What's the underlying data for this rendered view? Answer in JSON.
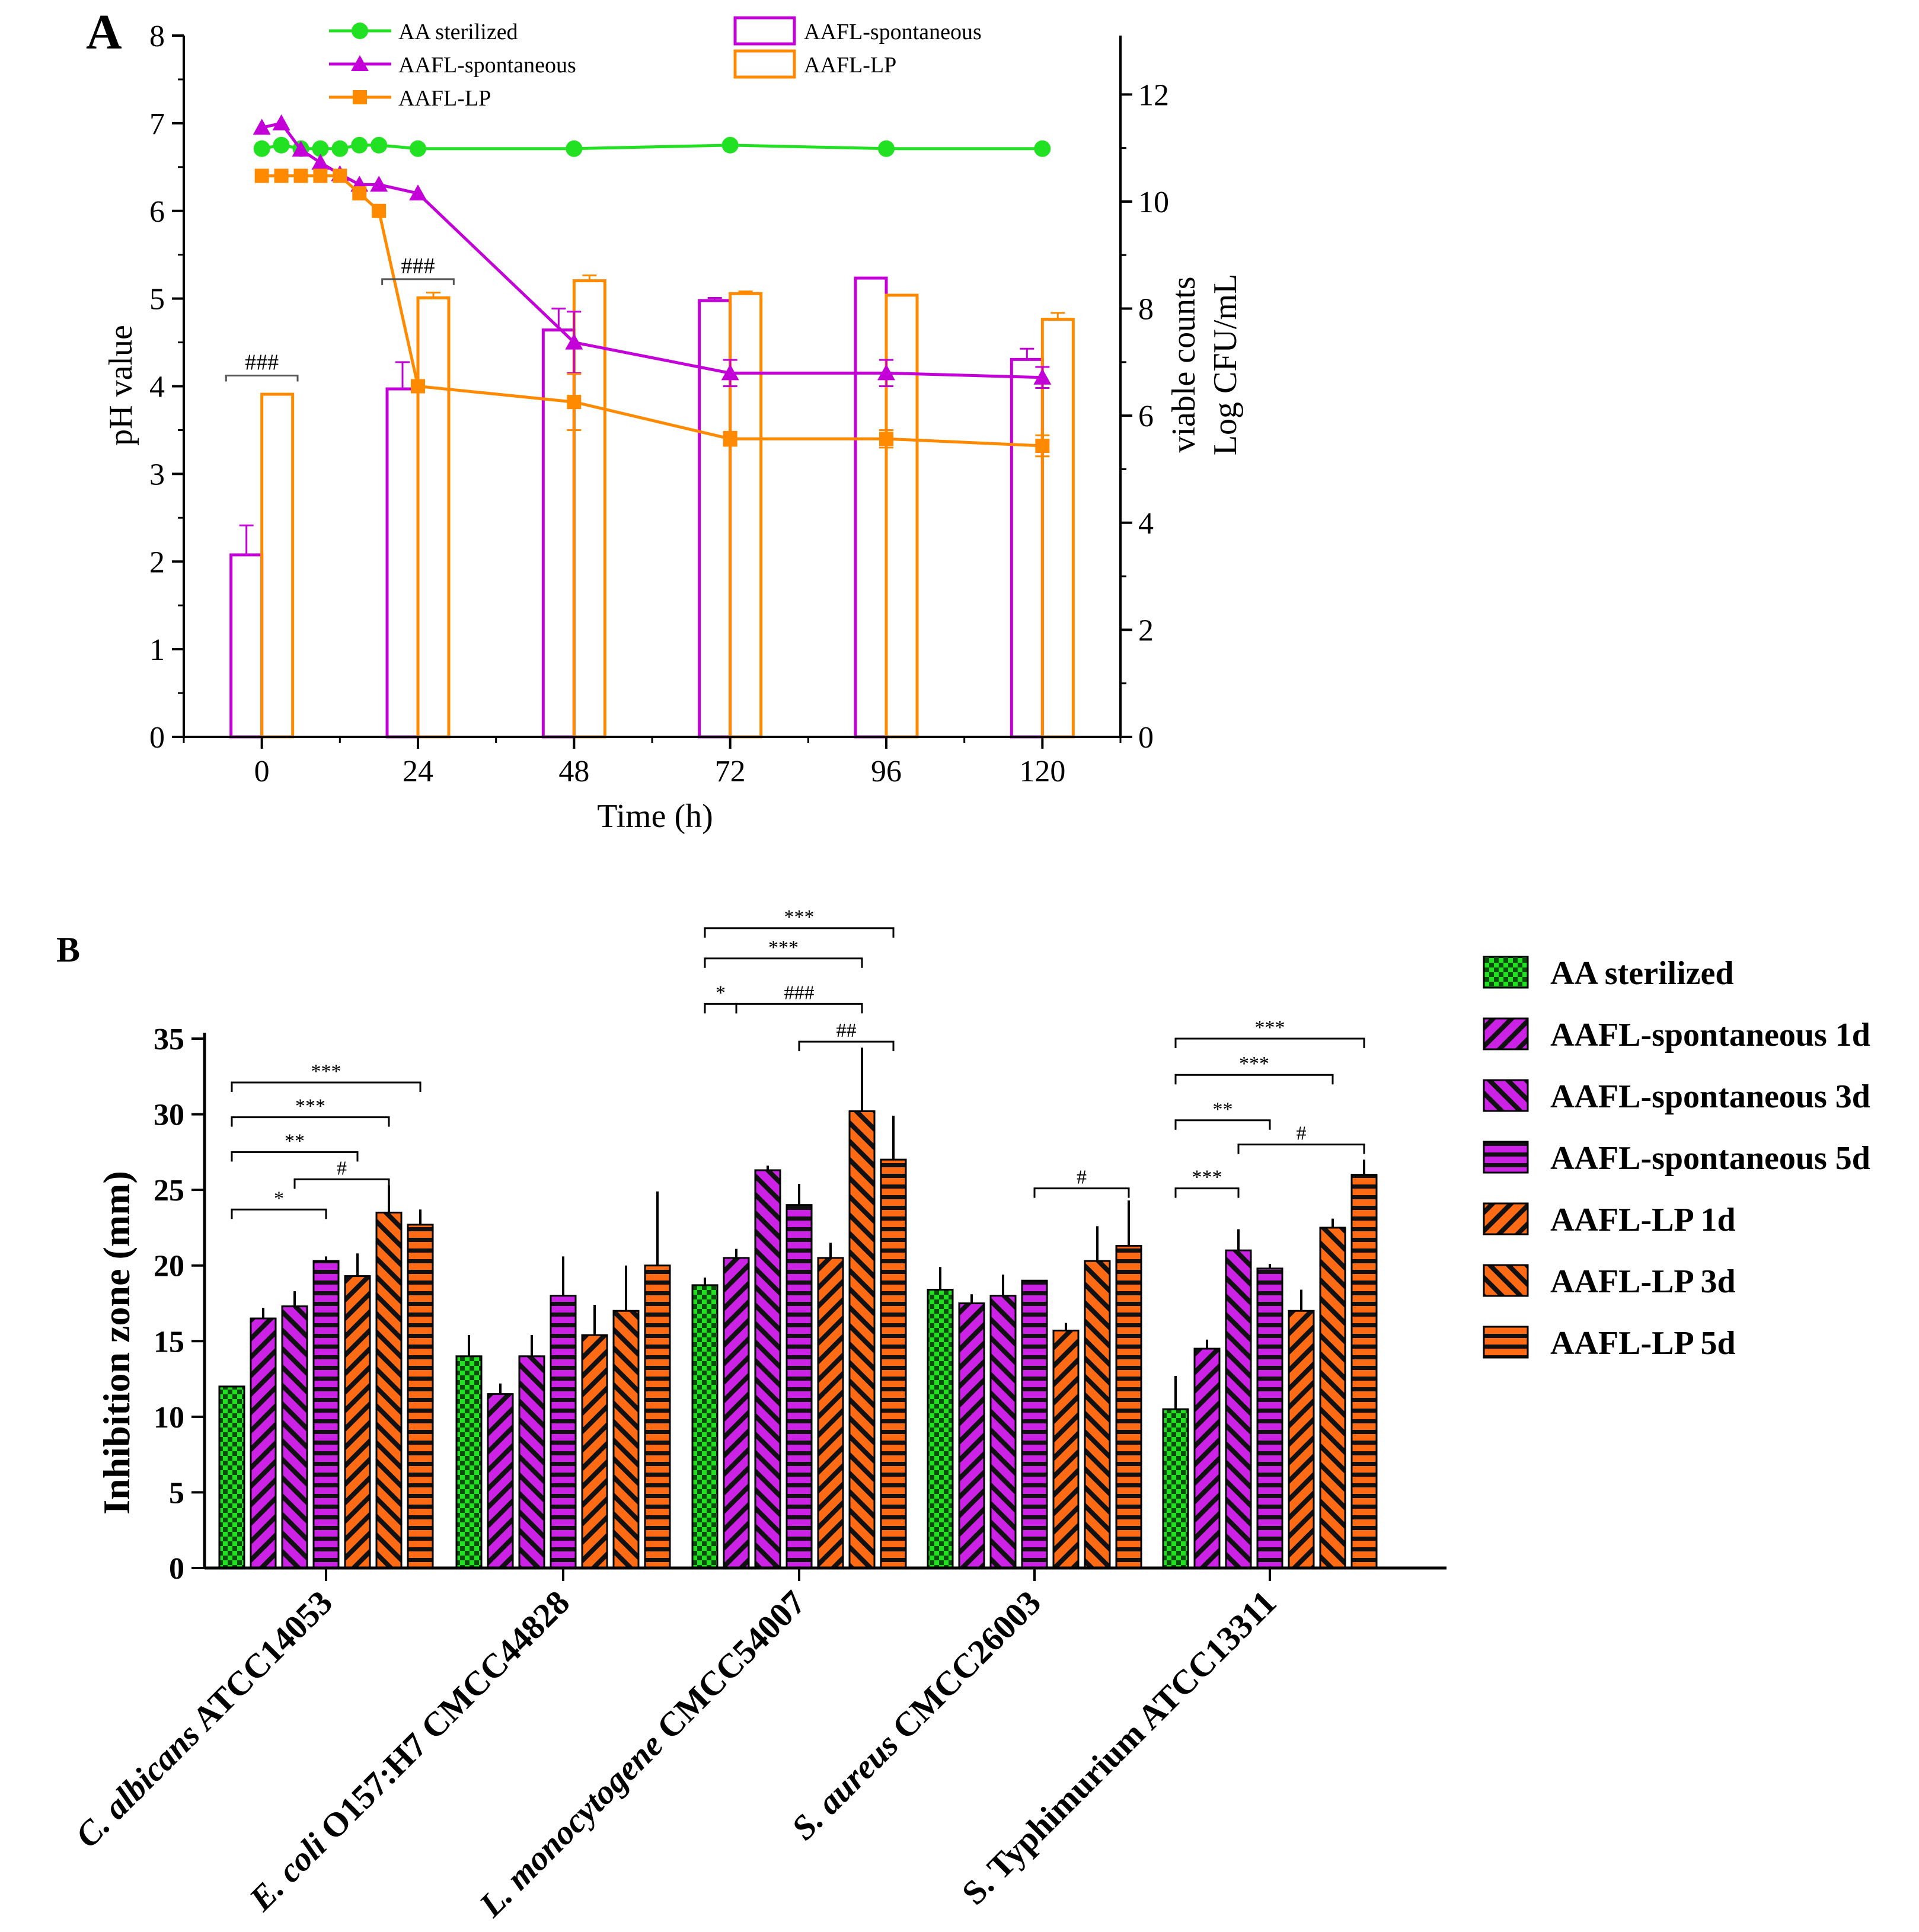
{
  "colors": {
    "green": "#22e022",
    "purple": "#c300d8",
    "bar_purple": "#cc22e6",
    "orange": "#ff8a00",
    "bar_orange": "#ff6a14",
    "axis": "#000000"
  },
  "chart_data": [
    {
      "panel_label": "A",
      "type": "line+bar",
      "xlabel": "Time (h)",
      "ylabel_left": "pH value",
      "ylabel_right_line1": "viable counts",
      "ylabel_right_line2": "Log CFU/mL",
      "x_ticks": [
        "0",
        "24",
        "48",
        "72",
        "96",
        "120"
      ],
      "y_left_ticks": [
        "0",
        "1",
        "2",
        "3",
        "4",
        "5",
        "6",
        "7",
        "8"
      ],
      "y_right_ticks": [
        "0",
        "2",
        "4",
        "6",
        "8",
        "10",
        "12"
      ],
      "xlim": [
        -12,
        132
      ],
      "ylim_left": [
        0,
        8
      ],
      "ylim_right": [
        0,
        13.1
      ],
      "line_series": [
        {
          "name": "AA sterilized",
          "color": "#22e022",
          "marker": "circle",
          "x": [
            0,
            3,
            6,
            9,
            12,
            15,
            18,
            24,
            48,
            72,
            96,
            120
          ],
          "y": [
            6.71,
            6.75,
            6.71,
            6.71,
            6.71,
            6.75,
            6.75,
            6.71,
            6.71,
            6.75,
            6.71,
            6.71
          ]
        },
        {
          "name": "AAFL-spontaneous",
          "color": "#c300d8",
          "marker": "triangle",
          "x": [
            0,
            3,
            6,
            9,
            12,
            15,
            18,
            24,
            48,
            72,
            96,
            120
          ],
          "y": [
            6.95,
            7.0,
            6.7,
            6.55,
            6.42,
            6.3,
            6.3,
            6.2,
            4.5,
            4.15,
            4.15,
            4.1
          ],
          "err": [
            0,
            0,
            0,
            0,
            0,
            0,
            0,
            0,
            0.35,
            0.15,
            0.15,
            0.12
          ]
        },
        {
          "name": "AAFL-LP",
          "color": "#ff8a00",
          "marker": "square",
          "x": [
            0,
            3,
            6,
            9,
            12,
            15,
            18,
            24,
            48,
            72,
            96,
            120
          ],
          "y": [
            6.4,
            6.4,
            6.4,
            6.4,
            6.4,
            6.2,
            6.0,
            4.0,
            3.82,
            3.4,
            3.4,
            3.32
          ],
          "err": [
            0,
            0,
            0,
            0,
            0,
            0,
            0,
            0,
            0.32,
            0.08,
            0.1,
            0.12
          ]
        }
      ],
      "bar_series": [
        {
          "name": "AAFL-spontaneous",
          "color": "#c300d8",
          "x": [
            0,
            24,
            48,
            72,
            96,
            120
          ],
          "values": [
            3.4,
            6.5,
            7.6,
            8.15,
            8.57,
            7.05
          ],
          "err": [
            0.55,
            0.5,
            0.4,
            0.05,
            0,
            0.2
          ]
        },
        {
          "name": "AAFL-LP",
          "color": "#ff8a00",
          "x": [
            0,
            24,
            48,
            72,
            96,
            120
          ],
          "values": [
            6.4,
            8.2,
            8.52,
            8.28,
            8.25,
            7.8
          ],
          "err": [
            0,
            0.1,
            0.1,
            0.04,
            0,
            0.12
          ]
        }
      ],
      "annotations": [
        {
          "text": "###",
          "x_from": -5.5,
          "x_to": 5.5,
          "level": 6.75
        },
        {
          "text": "###",
          "x_from": 18.5,
          "x_to": 29.5,
          "level": 8.55
        }
      ]
    },
    {
      "panel_label": "B",
      "type": "bar",
      "ylabel": "Inhibition zone (mm)",
      "xlabel": "",
      "ylim": [
        0,
        35
      ],
      "y_ticks": [
        "0",
        "5",
        "10",
        "15",
        "20",
        "25",
        "30",
        "35"
      ],
      "categories": [
        {
          "italic": "C. albicans",
          "rest": " ATCC14053"
        },
        {
          "italic": "E. coli",
          "rest": " O157:H7 CMCC44828"
        },
        {
          "italic": "L. monocytogene",
          "rest": "  CMCC54007"
        },
        {
          "italic": "S. aureus",
          "rest": " CMCC26003"
        },
        {
          "italic": "",
          "rest": "S. Typhimurium ATCC13311"
        }
      ],
      "series": [
        {
          "name": "AA sterilized",
          "pattern": "checker",
          "color": "#22e022",
          "values": [
            12.0,
            14.0,
            18.7,
            18.4,
            10.5
          ],
          "err": [
            0,
            1.4,
            0.5,
            1.5,
            2.2
          ]
        },
        {
          "name": "AAFL-spontaneous 1d",
          "pattern": "diag-back",
          "color": "#cc22e6",
          "values": [
            16.5,
            11.5,
            20.5,
            17.5,
            14.5
          ],
          "err": [
            0.7,
            0.7,
            0.6,
            0.6,
            0.6
          ]
        },
        {
          "name": "AAFL-spontaneous 3d",
          "pattern": "diag-fwd",
          "color": "#cc22e6",
          "values": [
            17.3,
            14.0,
            26.3,
            18.0,
            21.0
          ],
          "err": [
            1.0,
            1.4,
            0.3,
            1.4,
            1.4
          ]
        },
        {
          "name": "AAFL-spontaneous 5d",
          "pattern": "horiz",
          "color": "#cc22e6",
          "values": [
            20.3,
            18.0,
            24.0,
            19.0,
            19.8
          ],
          "err": [
            0.3,
            2.6,
            1.4,
            0,
            0.3
          ]
        },
        {
          "name": "AAFL-LP 1d",
          "pattern": "diag-back",
          "color": "#ff6a14",
          "values": [
            19.3,
            15.4,
            20.5,
            15.7,
            17.0
          ],
          "err": [
            1.5,
            2.0,
            1.0,
            0.5,
            1.4
          ]
        },
        {
          "name": "AAFL-LP 3d",
          "pattern": "diag-fwd",
          "color": "#ff6a14",
          "values": [
            23.5,
            17.0,
            30.2,
            20.3,
            22.5
          ],
          "err": [
            1.8,
            3.0,
            4.2,
            2.3,
            0.6
          ]
        },
        {
          "name": "AAFL-LP 5d",
          "pattern": "horiz",
          "color": "#ff6a14",
          "values": [
            22.7,
            20.0,
            27.0,
            21.3,
            26.0
          ],
          "err": [
            1.0,
            4.9,
            2.9,
            3.0,
            1.0
          ]
        }
      ],
      "significance": [
        {
          "group": 0,
          "from": 0,
          "to": 3,
          "text": "*",
          "level": 23.7
        },
        {
          "group": 0,
          "from": 0,
          "to": 4,
          "text": "**",
          "level": 27.5
        },
        {
          "group": 0,
          "from": 0,
          "to": 5,
          "text": "***",
          "level": 29.8
        },
        {
          "group": 0,
          "from": 0,
          "to": 6,
          "text": "***",
          "level": 32.1
        },
        {
          "group": 0,
          "from": 2,
          "to": 5,
          "text": "#",
          "level": 25.7
        },
        {
          "group": 2,
          "from": 0,
          "to": 1,
          "text": "*",
          "level": 37.3
        },
        {
          "group": 2,
          "from": 1,
          "to": 5,
          "text": "###",
          "level": 37.3
        },
        {
          "group": 2,
          "from": 3,
          "to": 6,
          "text": "##",
          "level": 34.8
        },
        {
          "group": 2,
          "from": 0,
          "to": 5,
          "text": "***",
          "level": 40.3
        },
        {
          "group": 2,
          "from": 0,
          "to": 6,
          "text": "***",
          "level": 42.3
        },
        {
          "group": 3,
          "from": 3,
          "to": 6,
          "text": "#",
          "level": 25.1
        },
        {
          "group": 4,
          "from": 0,
          "to": 2,
          "text": "***",
          "level": 25.1
        },
        {
          "group": 4,
          "from": 0,
          "to": 3,
          "text": "**",
          "level": 29.6
        },
        {
          "group": 4,
          "from": 2,
          "to": 6,
          "text": "#",
          "level": 28.0
        },
        {
          "group": 4,
          "from": 0,
          "to": 5,
          "text": "***",
          "level": 32.6
        },
        {
          "group": 4,
          "from": 0,
          "to": 6,
          "text": "***",
          "level": 35.0
        }
      ]
    }
  ]
}
